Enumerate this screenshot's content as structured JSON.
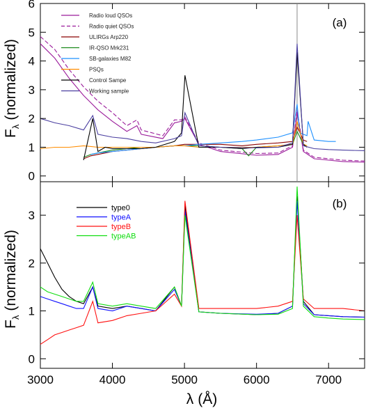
{
  "chart_data": [
    {
      "type": "line",
      "panel_label": "(a)",
      "ylabel_main": "F",
      "ylabel_sub": "λ",
      "ylabel_rest": "(normalized)",
      "xlim": [
        3000,
        7500
      ],
      "ylim": [
        -0.2,
        6.0
      ],
      "yticks": [
        0,
        1,
        2,
        3,
        4,
        5,
        6
      ],
      "grid": false,
      "legend_position": "top-left",
      "reference_line_x": 6563,
      "series": [
        {
          "name": "Radio loud QSOs",
          "color": "#9a1a9a",
          "dash": "solid",
          "x": [
            3000,
            3200,
            3400,
            3600,
            3800,
            4000,
            4200,
            4340,
            4400,
            4700,
            4861,
            4959,
            5007,
            5200,
            5500,
            6000,
            6300,
            6500,
            6563,
            6650,
            6800,
            7000,
            7200,
            7500
          ],
          "y": [
            4.6,
            4.1,
            3.4,
            2.8,
            2.3,
            1.9,
            1.55,
            1.75,
            1.45,
            1.3,
            1.85,
            1.9,
            2.0,
            1.1,
            0.85,
            0.72,
            0.75,
            1.0,
            2.2,
            0.85,
            0.6,
            0.55,
            0.5,
            0.48
          ]
        },
        {
          "name": "Radio quiet QSOs",
          "color": "#9a1a9a",
          "dash": "dashed",
          "x": [
            3000,
            3200,
            3400,
            3600,
            3800,
            4000,
            4200,
            4340,
            4400,
            4700,
            4861,
            4959,
            5007,
            5200,
            5500,
            6000,
            6300,
            6500,
            6563,
            6650,
            6800,
            7000,
            7200,
            7500
          ],
          "y": [
            4.85,
            4.4,
            3.7,
            3.1,
            2.6,
            2.2,
            1.75,
            1.95,
            1.6,
            1.4,
            1.95,
            1.95,
            2.05,
            1.15,
            0.9,
            0.78,
            0.8,
            1.05,
            2.3,
            0.9,
            0.65,
            0.6,
            0.55,
            0.52
          ]
        },
        {
          "name": "ULIRGs Arp220",
          "color": "#8b0000",
          "dash": "solid",
          "x": [
            3600,
            3700,
            3800,
            3900,
            4000,
            4200,
            4400,
            4600,
            4861,
            5000,
            5200,
            5500,
            5800,
            6000,
            6300,
            6500,
            6563,
            6650,
            6700
          ],
          "y": [
            0.6,
            0.7,
            0.75,
            0.8,
            0.85,
            0.9,
            0.95,
            1.0,
            1.05,
            1.1,
            1.1,
            1.1,
            1.05,
            1.1,
            1.15,
            1.2,
            1.7,
            1.25,
            1.2
          ]
        },
        {
          "name": "IR-QSO Mrk231",
          "color": "#1a8a1a",
          "dash": "solid",
          "x": [
            3600,
            3700,
            3800,
            3900,
            4000,
            4200,
            4400,
            4600,
            4861,
            5000,
            5200,
            5500,
            5800,
            5890,
            6000,
            6300,
            6500,
            6563,
            6650,
            6700
          ],
          "y": [
            0.65,
            0.75,
            0.8,
            0.85,
            0.9,
            0.95,
            1.0,
            1.0,
            1.05,
            1.05,
            1.05,
            1.0,
            0.95,
            0.7,
            1.0,
            1.05,
            1.1,
            1.55,
            1.1,
            1.05
          ]
        },
        {
          "name": "SB-galaxies M82",
          "color": "#1e90ff",
          "dash": "solid",
          "x": [
            3700,
            3800,
            4000,
            4200,
            4400,
            4600,
            4861,
            5000,
            5200,
            5500,
            5800,
            6000,
            6300,
            6500,
            6563,
            6600,
            6700,
            6716,
            6800,
            7000,
            7100
          ],
          "y": [
            0.75,
            0.8,
            0.85,
            0.9,
            0.95,
            1.0,
            1.05,
            1.05,
            1.1,
            1.15,
            1.2,
            1.25,
            1.35,
            1.5,
            2.5,
            1.5,
            1.4,
            1.9,
            1.25,
            1.2,
            1.2
          ]
        },
        {
          "name": "PSQs",
          "color": "#ff8c00",
          "dash": "solid",
          "x": [
            3000,
            3200,
            3400,
            3600,
            3800,
            4000,
            4200,
            4400,
            4600,
            4861,
            5000,
            5200,
            5500,
            5800,
            6000,
            6300,
            6500,
            6563,
            6650,
            6700
          ],
          "y": [
            0.95,
            1.0,
            1.0,
            1.05,
            1.0,
            1.0,
            1.0,
            1.0,
            1.0,
            1.05,
            1.05,
            1.0,
            1.0,
            1.0,
            1.0,
            1.05,
            1.1,
            1.9,
            1.1,
            1.05
          ]
        },
        {
          "name": "Control Sampe",
          "color": "#000000",
          "dash": "solid",
          "x": [
            3600,
            3727,
            3800,
            3900,
            4000,
            4200,
            4400,
            4600,
            4861,
            4959,
            5007,
            5200,
            5500,
            5800,
            6000,
            6300,
            6500,
            6563,
            6650,
            6700
          ],
          "y": [
            0.55,
            2.0,
            0.85,
            1.0,
            0.95,
            0.95,
            0.95,
            1.0,
            1.2,
            1.5,
            3.5,
            1.0,
            1.0,
            0.95,
            1.0,
            1.0,
            1.1,
            4.3,
            1.1,
            1.0
          ]
        },
        {
          "name": "Working sample",
          "color": "#4b3fa0",
          "dash": "solid",
          "x": [
            3000,
            3200,
            3400,
            3600,
            3727,
            3800,
            4000,
            4200,
            4400,
            4600,
            4861,
            4959,
            5007,
            5200,
            5500,
            6000,
            6300,
            6500,
            6563,
            6650,
            6800,
            7000,
            7200,
            7500
          ],
          "y": [
            2.0,
            1.85,
            1.75,
            1.6,
            2.1,
            1.45,
            1.35,
            1.3,
            1.2,
            1.15,
            1.3,
            1.4,
            2.2,
            1.05,
            1.0,
            0.98,
            1.0,
            1.15,
            4.6,
            1.05,
            0.95,
            0.92,
            0.9,
            0.88
          ]
        }
      ]
    },
    {
      "type": "line",
      "panel_label": "(b)",
      "xlabel_main": "λ",
      "xlabel_unit": "(Å)",
      "ylabel_main": "F",
      "ylabel_sub": "λ",
      "ylabel_rest": "(normalized)",
      "xlim": [
        3000,
        7500
      ],
      "ylim": [
        -0.2,
        3.7
      ],
      "yticks": [
        0,
        1,
        2,
        3
      ],
      "xticks": [
        3000,
        4000,
        5000,
        6000,
        7000
      ],
      "grid": false,
      "legend_position": "top-left",
      "series": [
        {
          "name": "type0",
          "color": "#000000",
          "x": [
            3000,
            3100,
            3200,
            3300,
            3400,
            3500,
            3600,
            3727,
            3800,
            4000,
            4200,
            4400,
            4600,
            4861,
            4959,
            5007,
            5200,
            5500,
            6000,
            6300,
            6500,
            6563,
            6650,
            6800,
            7000,
            7200,
            7500
          ],
          "y": [
            2.3,
            2.0,
            1.7,
            1.45,
            1.3,
            1.2,
            1.15,
            1.5,
            1.1,
            1.05,
            1.1,
            1.05,
            1.0,
            1.5,
            1.1,
            3.2,
            0.98,
            0.95,
            0.92,
            0.95,
            1.1,
            3.4,
            1.2,
            0.92,
            0.9,
            0.88,
            0.87
          ]
        },
        {
          "name": "typeA",
          "color": "#1010ff",
          "x": [
            3000,
            3100,
            3200,
            3300,
            3400,
            3500,
            3600,
            3727,
            3800,
            4000,
            4200,
            4400,
            4600,
            4861,
            4959,
            5007,
            5200,
            5500,
            6000,
            6300,
            6500,
            6563,
            6650,
            6800,
            7000,
            7200,
            7500
          ],
          "y": [
            1.3,
            1.25,
            1.2,
            1.15,
            1.1,
            1.05,
            1.05,
            1.5,
            1.05,
            1.0,
            1.1,
            1.05,
            1.0,
            1.45,
            1.1,
            3.1,
            0.98,
            0.95,
            0.93,
            0.95,
            1.1,
            3.3,
            1.15,
            0.92,
            0.9,
            0.88,
            0.87
          ]
        },
        {
          "name": "typeB",
          "color": "#ff1010",
          "x": [
            3000,
            3100,
            3200,
            3300,
            3400,
            3500,
            3600,
            3727,
            3800,
            4000,
            4200,
            4400,
            4600,
            4861,
            4959,
            5007,
            5200,
            5500,
            6000,
            6300,
            6500,
            6563,
            6650,
            6800,
            7000,
            7200,
            7500
          ],
          "y": [
            0.3,
            0.4,
            0.5,
            0.55,
            0.6,
            0.65,
            0.7,
            1.2,
            0.75,
            0.8,
            0.9,
            0.95,
            1.0,
            1.35,
            1.1,
            3.3,
            1.05,
            1.05,
            1.05,
            1.1,
            1.2,
            3.0,
            1.25,
            1.05,
            1.05,
            1.05,
            1.0
          ]
        },
        {
          "name": "typeAB",
          "color": "#10dd10",
          "x": [
            3000,
            3100,
            3200,
            3300,
            3400,
            3500,
            3600,
            3727,
            3800,
            4000,
            4200,
            4400,
            4600,
            4861,
            4959,
            5007,
            5200,
            5500,
            6000,
            6300,
            6500,
            6563,
            6650,
            6800,
            7000,
            7200,
            7500
          ],
          "y": [
            1.5,
            1.4,
            1.35,
            1.3,
            1.25,
            1.2,
            1.2,
            1.6,
            1.15,
            1.1,
            1.15,
            1.1,
            1.05,
            1.5,
            1.1,
            3.0,
            0.98,
            0.95,
            0.92,
            0.93,
            1.05,
            3.6,
            1.1,
            0.88,
            0.85,
            0.83,
            0.82
          ]
        }
      ]
    }
  ]
}
